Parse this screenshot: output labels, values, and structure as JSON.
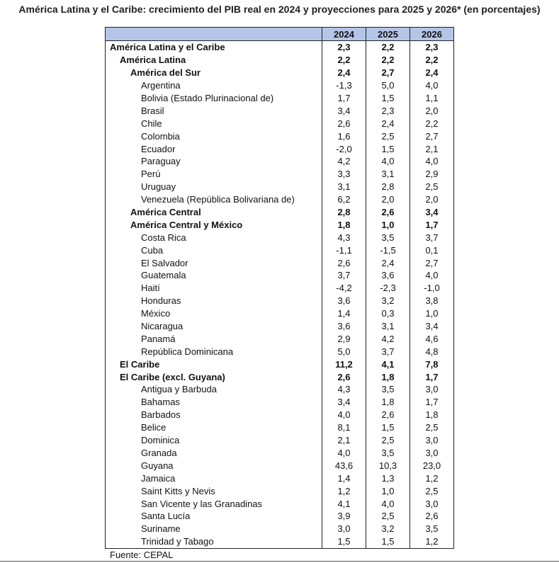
{
  "title": "América Latina y el Caribe: crecimiento del PIB real en 2024 y proyecciones para 2025 y 2026* (en porcentajes)",
  "columns": [
    "2024",
    "2025",
    "2026"
  ],
  "rows": [
    {
      "name": "América Latina y el Caribe",
      "level": 1,
      "bold": true,
      "v": [
        "2,3",
        "2,2",
        "2,3"
      ]
    },
    {
      "name": "América Latina",
      "level": 2,
      "bold": true,
      "v": [
        "2,2",
        "2,2",
        "2,2"
      ]
    },
    {
      "name": "América del Sur",
      "level": 3,
      "bold": true,
      "v": [
        "2,4",
        "2,7",
        "2,4"
      ]
    },
    {
      "name": "Argentina",
      "level": 4,
      "bold": false,
      "v": [
        "-1,3",
        "5,0",
        "4,0"
      ]
    },
    {
      "name": "Bolivia (Estado Plurinacional de)",
      "level": 4,
      "bold": false,
      "v": [
        "1,7",
        "1,5",
        "1,1"
      ]
    },
    {
      "name": "Brasil",
      "level": 4,
      "bold": false,
      "v": [
        "3,4",
        "2,3",
        "2,0"
      ]
    },
    {
      "name": "Chile",
      "level": 4,
      "bold": false,
      "v": [
        "2,6",
        "2,4",
        "2,2"
      ]
    },
    {
      "name": "Colombia",
      "level": 4,
      "bold": false,
      "v": [
        "1,6",
        "2,5",
        "2,7"
      ]
    },
    {
      "name": "Ecuador",
      "level": 4,
      "bold": false,
      "v": [
        "-2,0",
        "1,5",
        "2,1"
      ]
    },
    {
      "name": "Paraguay",
      "level": 4,
      "bold": false,
      "v": [
        "4,2",
        "4,0",
        "4,0"
      ]
    },
    {
      "name": "Perú",
      "level": 4,
      "bold": false,
      "v": [
        "3,3",
        "3,1",
        "2,9"
      ]
    },
    {
      "name": "Uruguay",
      "level": 4,
      "bold": false,
      "v": [
        "3,1",
        "2,8",
        "2,5"
      ]
    },
    {
      "name": "Venezuela (República Bolivariana de)",
      "level": 4,
      "bold": false,
      "v": [
        "6,2",
        "2,0",
        "2,0"
      ]
    },
    {
      "name": "América Central",
      "level": 3,
      "bold": true,
      "v": [
        "2,8",
        "2,6",
        "3,4"
      ]
    },
    {
      "name": "América Central y México",
      "level": 3,
      "bold": true,
      "v": [
        "1,8",
        "1,0",
        "1,7"
      ]
    },
    {
      "name": "Costa Rica",
      "level": 4,
      "bold": false,
      "v": [
        "4,3",
        "3,5",
        "3,7"
      ]
    },
    {
      "name": "Cuba",
      "level": 4,
      "bold": false,
      "v": [
        "-1,1",
        "-1,5",
        "0,1"
      ]
    },
    {
      "name": "El Salvador",
      "level": 4,
      "bold": false,
      "v": [
        "2,6",
        "2,4",
        "2,7"
      ]
    },
    {
      "name": "Guatemala",
      "level": 4,
      "bold": false,
      "v": [
        "3,7",
        "3,6",
        "4,0"
      ]
    },
    {
      "name": "Haití",
      "level": 4,
      "bold": false,
      "v": [
        "-4,2",
        "-2,3",
        "-1,0"
      ]
    },
    {
      "name": "Honduras",
      "level": 4,
      "bold": false,
      "v": [
        "3,6",
        "3,2",
        "3,8"
      ]
    },
    {
      "name": "México",
      "level": 4,
      "bold": false,
      "v": [
        "1,4",
        "0,3",
        "1,0"
      ]
    },
    {
      "name": "Nicaragua",
      "level": 4,
      "bold": false,
      "v": [
        "3,6",
        "3,1",
        "3,4"
      ]
    },
    {
      "name": "Panamá",
      "level": 4,
      "bold": false,
      "v": [
        "2,9",
        "4,2",
        "4,6"
      ]
    },
    {
      "name": "República Dominicana",
      "level": 4,
      "bold": false,
      "v": [
        "5,0",
        "3,7",
        "4,8"
      ]
    },
    {
      "name": "El Caribe",
      "level": 2,
      "bold": true,
      "v": [
        "11,2",
        "4,1",
        "7,8"
      ]
    },
    {
      "name": "El Caribe (excl. Guyana)",
      "level": 2,
      "bold": true,
      "v": [
        "2,6",
        "1,8",
        "1,7"
      ]
    },
    {
      "name": "Antigua y Barbuda",
      "level": 4,
      "bold": false,
      "v": [
        "4,3",
        "3,5",
        "3,0"
      ]
    },
    {
      "name": "Bahamas",
      "level": 4,
      "bold": false,
      "v": [
        "3,4",
        "1,8",
        "1,7"
      ]
    },
    {
      "name": "Barbados",
      "level": 4,
      "bold": false,
      "v": [
        "4,0",
        "2,6",
        "1,8"
      ]
    },
    {
      "name": "Belice",
      "level": 4,
      "bold": false,
      "v": [
        "8,1",
        "1,5",
        "2,5"
      ]
    },
    {
      "name": "Dominica",
      "level": 4,
      "bold": false,
      "v": [
        "2,1",
        "2,5",
        "3,0"
      ]
    },
    {
      "name": "Granada",
      "level": 4,
      "bold": false,
      "v": [
        "4,0",
        "3,5",
        "3,0"
      ]
    },
    {
      "name": "Guyana",
      "level": 4,
      "bold": false,
      "v": [
        "43,6",
        "10,3",
        "23,0"
      ]
    },
    {
      "name": "Jamaica",
      "level": 4,
      "bold": false,
      "v": [
        "1,4",
        "1,3",
        "1,2"
      ]
    },
    {
      "name": "Saint Kitts y Nevis",
      "level": 4,
      "bold": false,
      "v": [
        "1,2",
        "1,0",
        "2,5"
      ]
    },
    {
      "name": "San Vicente y las Granadinas",
      "level": 4,
      "bold": false,
      "v": [
        "4,1",
        "4,0",
        "3,0"
      ]
    },
    {
      "name": "Santa Lucía",
      "level": 4,
      "bold": false,
      "v": [
        "3,9",
        "2,5",
        "2,6"
      ]
    },
    {
      "name": "Suriname",
      "level": 4,
      "bold": false,
      "v": [
        "3,0",
        "3,2",
        "3,5"
      ]
    },
    {
      "name": "Trinidad y Tabago",
      "level": 4,
      "bold": false,
      "v": [
        "1,5",
        "1,5",
        "1,2"
      ]
    }
  ],
  "source": "Fuente: CEPAL"
}
